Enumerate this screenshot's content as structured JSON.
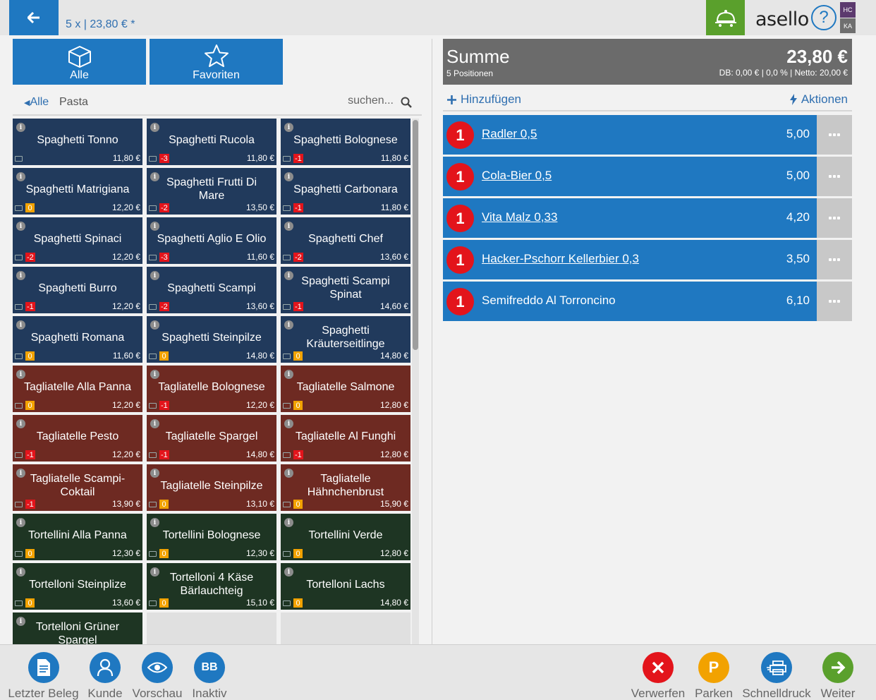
{
  "header": {
    "summary": "5 x | 23,80 € *",
    "logo": "asello",
    "help": "?",
    "badge_top": "HC",
    "badge_bottom": "KA"
  },
  "categories": [
    {
      "label": "Alle",
      "icon": "box-icon"
    },
    {
      "label": "Favoriten",
      "icon": "star-icon"
    }
  ],
  "breadcrumb": {
    "back": "Alle",
    "current": "Pasta"
  },
  "search": {
    "placeholder": "suchen..."
  },
  "products": [
    {
      "name": "Spaghetti Tonno",
      "price": "11,80 €",
      "stock": "",
      "color": "blue"
    },
    {
      "name": "Spaghetti Rucola",
      "price": "11,80 €",
      "stock": "-3",
      "color": "blue"
    },
    {
      "name": "Spaghetti Bolognese",
      "price": "11,80 €",
      "stock": "-1",
      "color": "blue"
    },
    {
      "name": "Spaghetti Matrigiana",
      "price": "12,20 €",
      "stock": "0",
      "color": "blue"
    },
    {
      "name": "Spaghetti Frutti Di Mare",
      "price": "13,50 €",
      "stock": "-2",
      "color": "blue"
    },
    {
      "name": "Spaghetti Carbonara",
      "price": "11,80 €",
      "stock": "-1",
      "color": "blue"
    },
    {
      "name": "Spaghetti Spinaci",
      "price": "12,20 €",
      "stock": "-2",
      "color": "blue"
    },
    {
      "name": "Spaghetti Aglio E Olio",
      "price": "11,60 €",
      "stock": "-3",
      "color": "blue"
    },
    {
      "name": "Spaghetti Chef",
      "price": "13,60 €",
      "stock": "-2",
      "color": "blue"
    },
    {
      "name": "Spaghetti Burro",
      "price": "12,20 €",
      "stock": "-1",
      "color": "blue"
    },
    {
      "name": "Spaghetti Scampi",
      "price": "13,60 €",
      "stock": "-2",
      "color": "blue"
    },
    {
      "name": "Spaghetti Scampi Spinat",
      "price": "14,60 €",
      "stock": "-1",
      "color": "blue"
    },
    {
      "name": "Spaghetti Romana",
      "price": "11,60 €",
      "stock": "0",
      "color": "blue"
    },
    {
      "name": "Spaghetti Steinpilze",
      "price": "14,80 €",
      "stock": "0",
      "color": "blue"
    },
    {
      "name": "Spaghetti Kräuterseitlinge",
      "price": "14,80 €",
      "stock": "0",
      "color": "blue"
    },
    {
      "name": "Tagliatelle Alla Panna",
      "price": "12,20 €",
      "stock": "0",
      "color": "red"
    },
    {
      "name": "Tagliatelle Bolognese",
      "price": "12,20 €",
      "stock": "-1",
      "color": "red"
    },
    {
      "name": "Tagliatelle Salmone",
      "price": "12,80 €",
      "stock": "0",
      "color": "red"
    },
    {
      "name": "Tagliatelle Pesto",
      "price": "12,20 €",
      "stock": "-1",
      "color": "red"
    },
    {
      "name": "Tagliatelle Spargel",
      "price": "14,80 €",
      "stock": "-1",
      "color": "red"
    },
    {
      "name": "Tagliatelle Al Funghi",
      "price": "12,80 €",
      "stock": "-1",
      "color": "red"
    },
    {
      "name": "Tagliatelle Scampi-Coktail",
      "price": "13,90 €",
      "stock": "-1",
      "color": "red"
    },
    {
      "name": "Tagliatelle Steinpilze",
      "price": "13,10 €",
      "stock": "0",
      "color": "red"
    },
    {
      "name": "Tagliatelle Hähnchenbrust",
      "price": "15,90 €",
      "stock": "0",
      "color": "red"
    },
    {
      "name": "Tortellini Alla Panna",
      "price": "12,30 €",
      "stock": "0",
      "color": "green"
    },
    {
      "name": "Tortellini Bolognese",
      "price": "12,30 €",
      "stock": "0",
      "color": "green"
    },
    {
      "name": "Tortellini Verde",
      "price": "12,80 €",
      "stock": "0",
      "color": "green"
    },
    {
      "name": "Tortelloni Steinplize",
      "price": "13,60 €",
      "stock": "0",
      "color": "green"
    },
    {
      "name": "Tortelloni 4 Käse Bärlauchteig",
      "price": "15,10 €",
      "stock": "0",
      "color": "green"
    },
    {
      "name": "Tortelloni Lachs",
      "price": "14,80 €",
      "stock": "0",
      "color": "green"
    },
    {
      "name": "Tortelloni Grüner Spargel",
      "price": "",
      "stock": "",
      "color": "green"
    }
  ],
  "summary": {
    "title": "Summe",
    "count": "5 Positionen",
    "total": "23,80 €",
    "detail": "DB: 0,00 € | 0,0 % | Netto: 20,00 €"
  },
  "cart_actions": {
    "add": "Hinzufügen",
    "actions": "Aktionen"
  },
  "cart": [
    {
      "qty": "1",
      "name": "Radler 0,5",
      "price": "5,00",
      "link": true
    },
    {
      "qty": "1",
      "name": "Cola-Bier 0,5",
      "price": "5,00",
      "link": true
    },
    {
      "qty": "1",
      "name": "Vita Malz 0,33",
      "price": "4,20",
      "link": true
    },
    {
      "qty": "1",
      "name": "Hacker-Pschorr Kellerbier 0,3",
      "price": "3,50",
      "link": true
    },
    {
      "qty": "1",
      "name": "Semifreddo Al Torroncino",
      "price": "6,10",
      "link": false
    }
  ],
  "toolbar_left": [
    {
      "label": "Letzter Beleg",
      "icon": "document-icon"
    },
    {
      "label": "Kunde",
      "icon": "user-icon"
    },
    {
      "label": "Vorschau",
      "icon": "eye-icon"
    },
    {
      "label": "Inaktiv",
      "icon": "bb-icon",
      "text": "BB"
    }
  ],
  "toolbar_right": [
    {
      "label": "Verwerfen",
      "icon": "close-icon"
    },
    {
      "label": "Parken",
      "icon": "parking-icon",
      "text": "P"
    },
    {
      "label": "Schnelldruck",
      "icon": "quickprint-icon"
    },
    {
      "label": "Weiter",
      "icon": "arrow-right-icon"
    }
  ],
  "colors": {
    "accent": "#1f78c1",
    "tile_blue": "#213a5c",
    "tile_red": "#6e2a22",
    "tile_green": "#1e3523",
    "stock_negative": "#e3141b",
    "stock_zero": "#f2a200"
  }
}
